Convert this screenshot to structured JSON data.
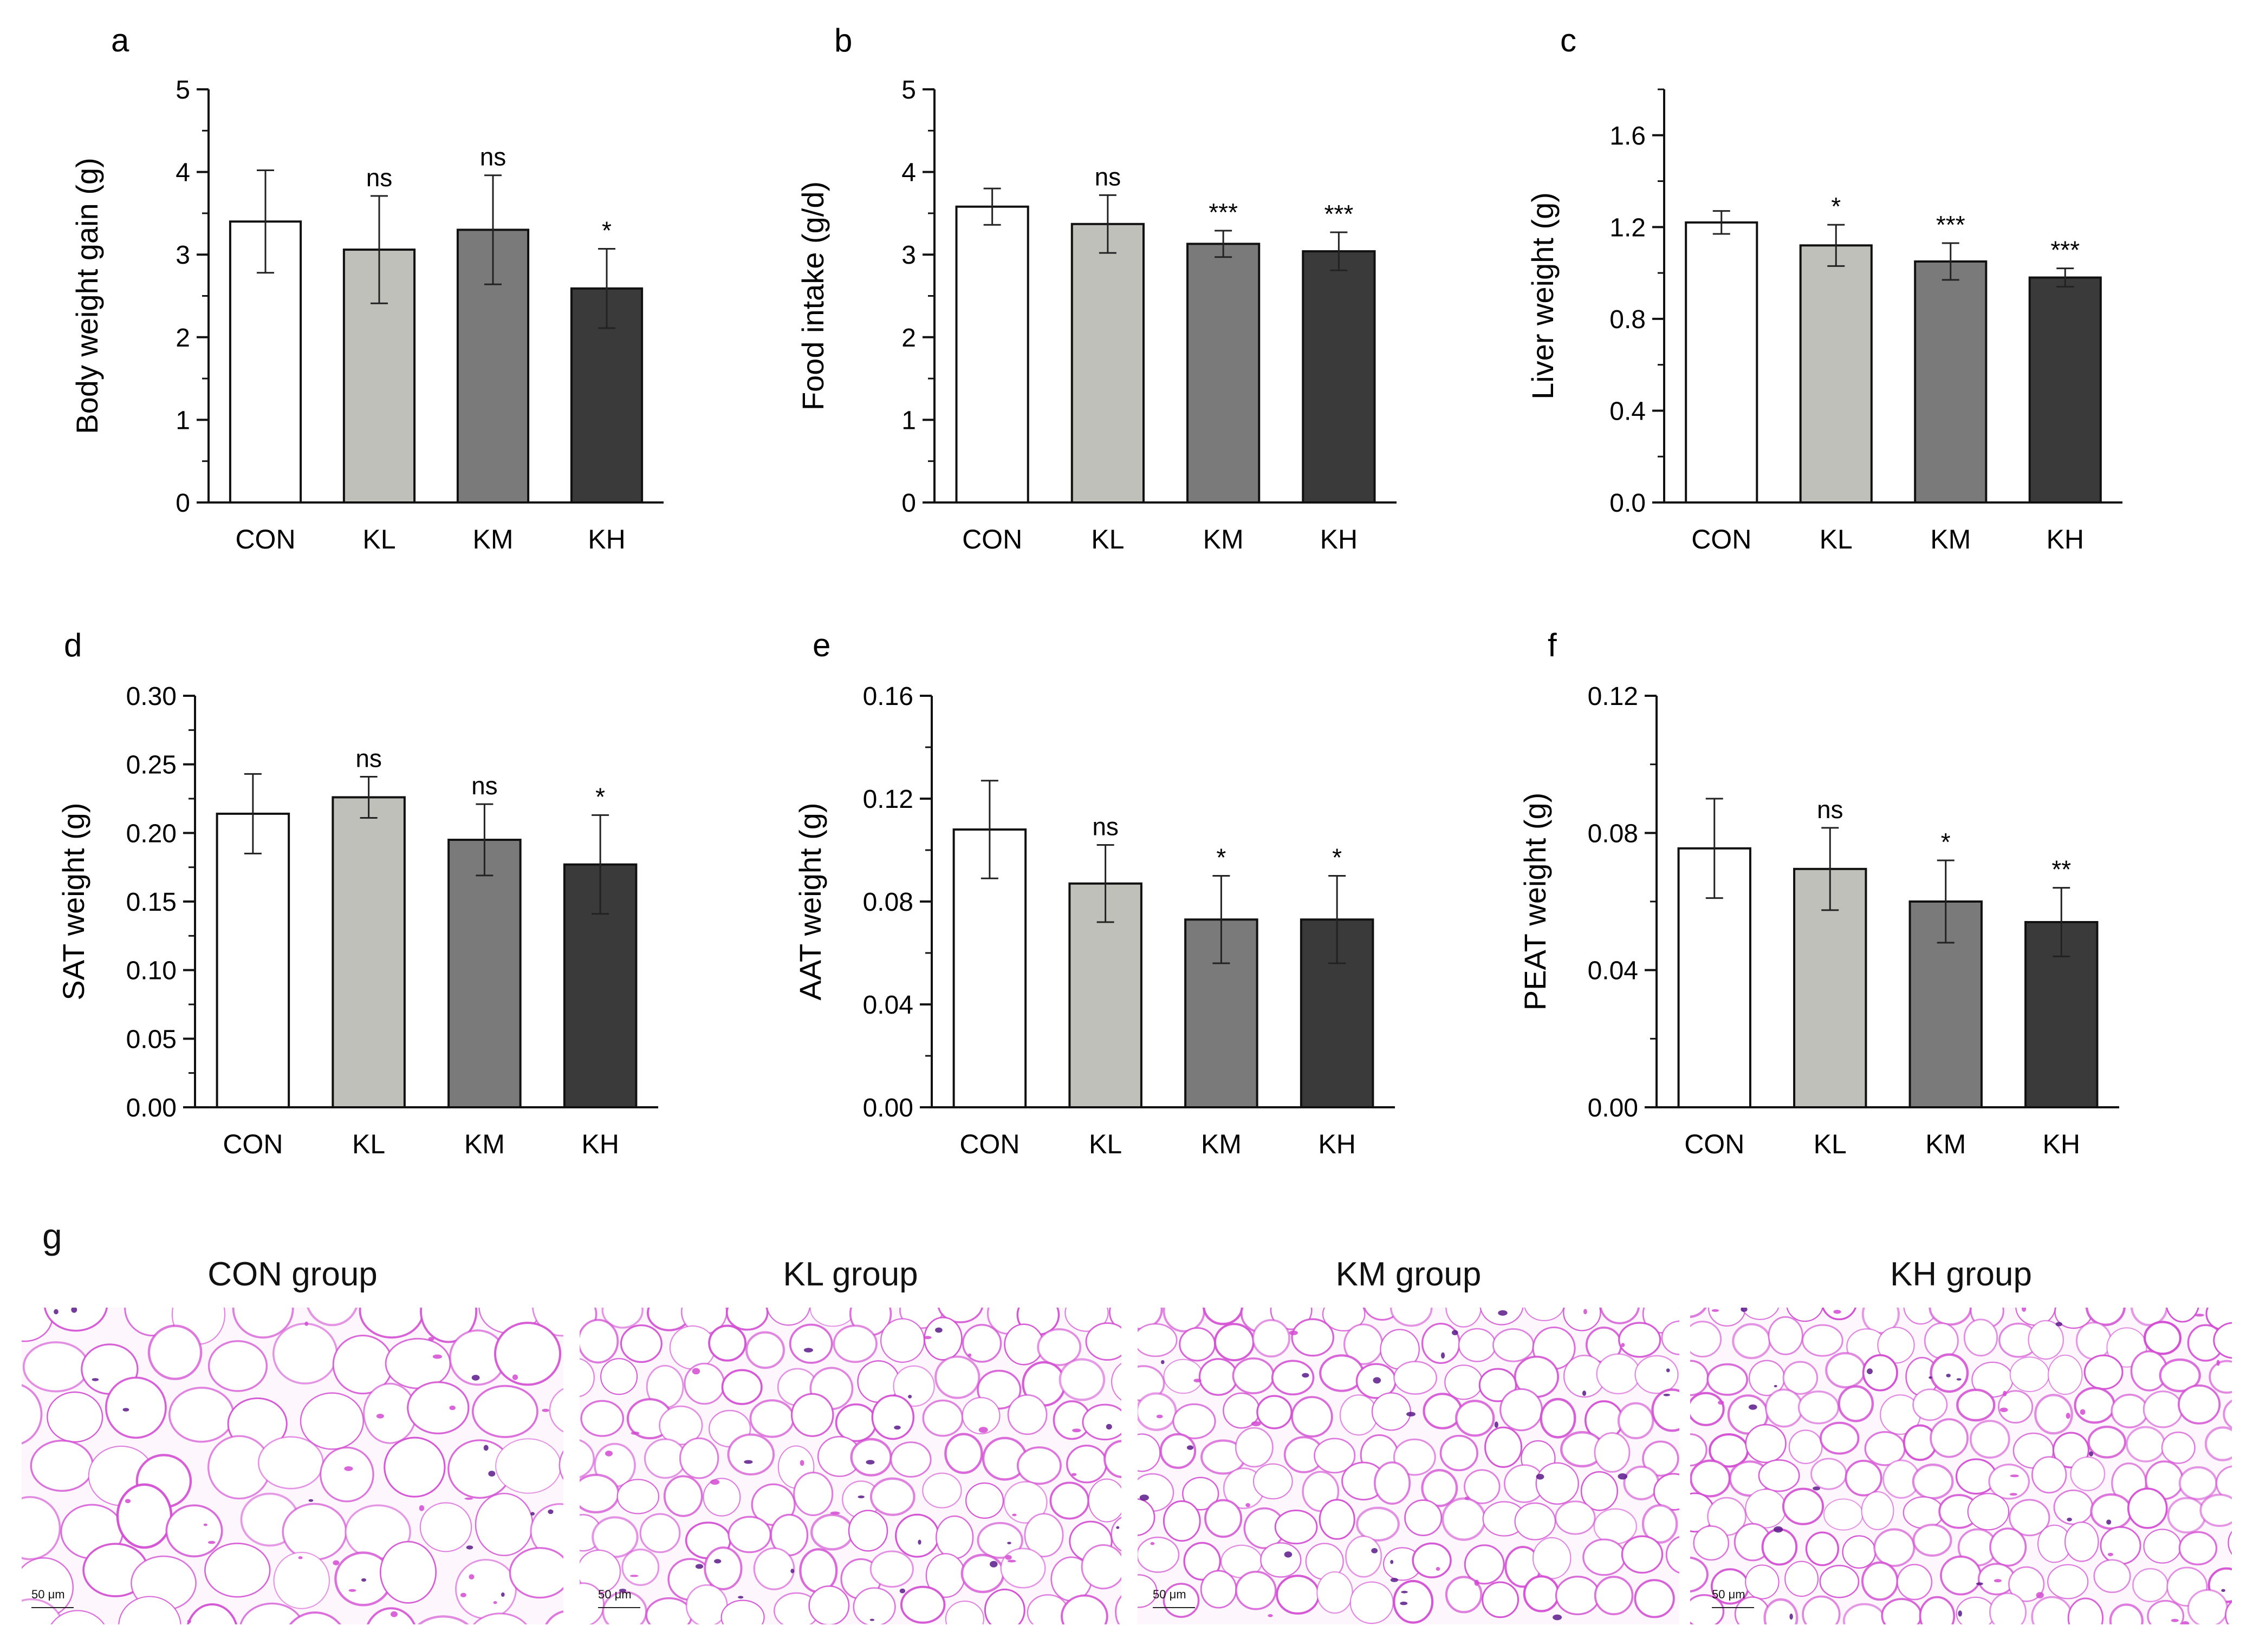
{
  "chart_data": [
    {
      "panel": "a",
      "type": "bar",
      "categories": [
        "CON",
        "KL",
        "KM",
        "KH"
      ],
      "values": [
        3.4,
        3.06,
        3.3,
        2.59
      ],
      "errors": [
        0.62,
        0.65,
        0.66,
        0.48
      ],
      "significance": [
        "",
        "ns",
        "ns",
        "*"
      ],
      "ylabel": "Body weight gain (g)",
      "ylim": [
        0,
        5
      ],
      "yticks": [
        "0",
        "1",
        "2",
        "3",
        "4",
        "5"
      ],
      "ytick_values": [
        0,
        1,
        2,
        3,
        4,
        5
      ]
    },
    {
      "panel": "b",
      "type": "bar",
      "categories": [
        "CON",
        "KL",
        "KM",
        "KH"
      ],
      "values": [
        3.58,
        3.37,
        3.13,
        3.04
      ],
      "errors": [
        0.22,
        0.35,
        0.16,
        0.23
      ],
      "significance": [
        "",
        "ns",
        "***",
        "***"
      ],
      "ylabel": "Food intake (g/d)",
      "ylim": [
        0,
        5
      ],
      "yticks": [
        "0",
        "1",
        "2",
        "3",
        "4",
        "5"
      ],
      "ytick_values": [
        0,
        1,
        2,
        3,
        4,
        5
      ]
    },
    {
      "panel": "c",
      "type": "bar",
      "categories": [
        "CON",
        "KL",
        "KM",
        "KH"
      ],
      "values": [
        1.22,
        1.12,
        1.05,
        0.98
      ],
      "errors": [
        0.05,
        0.09,
        0.08,
        0.04
      ],
      "significance": [
        "",
        "*",
        "***",
        "***"
      ],
      "ylabel": "Liver weight (g)",
      "ylim": [
        0,
        1.8
      ],
      "yticks": [
        "0.0",
        "0.4",
        "0.8",
        "1.2",
        "1.6"
      ],
      "ytick_values": [
        0,
        0.4,
        0.8,
        1.2,
        1.6
      ]
    },
    {
      "panel": "d",
      "type": "bar",
      "categories": [
        "CON",
        "KL",
        "KM",
        "KH"
      ],
      "values": [
        0.214,
        0.226,
        0.195,
        0.177
      ],
      "errors": [
        0.029,
        0.015,
        0.026,
        0.036
      ],
      "significance": [
        "",
        "ns",
        "ns",
        "*"
      ],
      "ylabel": "SAT weight (g)",
      "ylim": [
        0,
        0.3
      ],
      "yticks": [
        "0.00",
        "0.05",
        "0.10",
        "0.15",
        "0.20",
        "0.25",
        "0.30"
      ],
      "ytick_values": [
        0,
        0.05,
        0.1,
        0.15,
        0.2,
        0.25,
        0.3
      ]
    },
    {
      "panel": "e",
      "type": "bar",
      "categories": [
        "CON",
        "KL",
        "KM",
        "KH"
      ],
      "values": [
        0.108,
        0.087,
        0.073,
        0.073
      ],
      "errors": [
        0.019,
        0.015,
        0.017,
        0.017
      ],
      "significance": [
        "",
        "ns",
        "*",
        "*"
      ],
      "ylabel": "AAT weight (g)",
      "ylim": [
        0,
        0.16
      ],
      "yticks": [
        "0.00",
        "0.04",
        "0.08",
        "0.12",
        "0.16"
      ],
      "ytick_values": [
        0,
        0.04,
        0.08,
        0.12,
        0.16
      ]
    },
    {
      "panel": "f",
      "type": "bar",
      "categories": [
        "CON",
        "KL",
        "KM",
        "KH"
      ],
      "values": [
        0.0755,
        0.0695,
        0.06,
        0.054
      ],
      "errors": [
        0.0145,
        0.012,
        0.012,
        0.01
      ],
      "significance": [
        "",
        "ns",
        "*",
        "**"
      ],
      "ylabel": "PEAT weight (g)",
      "ylim": [
        0,
        0.12
      ],
      "yticks": [
        "0.00",
        "0.04",
        "0.08",
        "0.12"
      ],
      "ytick_values": [
        0,
        0.04,
        0.08,
        0.12
      ]
    }
  ],
  "bar_colors": [
    "#ffffff",
    "#c0c0bb",
    "#7a7a7a",
    "#3a3a3a"
  ],
  "micrographs": {
    "panel": "g",
    "titles": [
      "CON group",
      "KL group",
      "KM group",
      "KH group"
    ],
    "scale_label": "50 μm",
    "stain_color": "#d24ad2",
    "nucleus_color": "#5a1a8a"
  }
}
